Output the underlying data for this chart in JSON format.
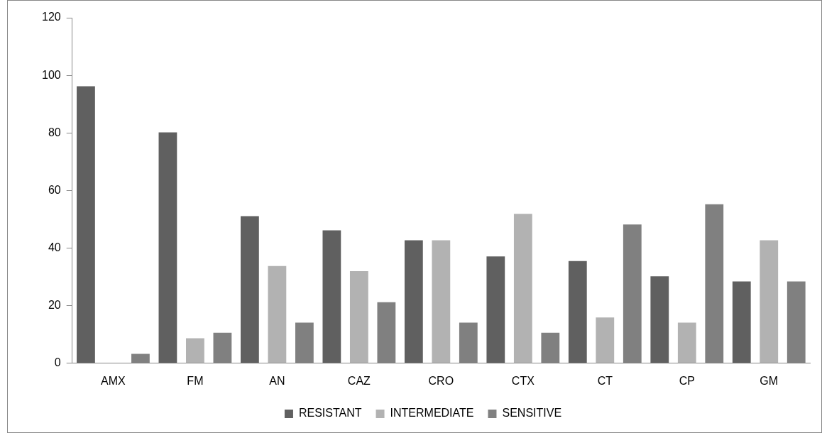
{
  "chart_data": {
    "type": "bar",
    "categories": [
      "AMX",
      "FM",
      "AN",
      "CAZ",
      "CRO",
      "CTX",
      "CT",
      "CP",
      "GM"
    ],
    "series": [
      {
        "name": "RESISTANT",
        "color": "#606060",
        "values": [
          96.2,
          80.2,
          51.1,
          46.2,
          42.7,
          37.1,
          35.5,
          30.2,
          28.4
        ]
      },
      {
        "name": "INTERMEDIATE",
        "color": "#b2b2b2",
        "values": [
          0,
          8.7,
          33.8,
          32.0,
          42.7,
          51.9,
          15.9,
          14.1,
          42.7
        ]
      },
      {
        "name": "SENSITIVE",
        "color": "#808080",
        "values": [
          3.3,
          10.6,
          14.1,
          21.2,
          14.1,
          10.6,
          48.2,
          55.2,
          28.4
        ]
      }
    ],
    "ylim": [
      0,
      120
    ],
    "yticks": [
      0,
      20,
      40,
      60,
      80,
      100,
      120
    ],
    "grid": false,
    "legend": "bottom"
  }
}
